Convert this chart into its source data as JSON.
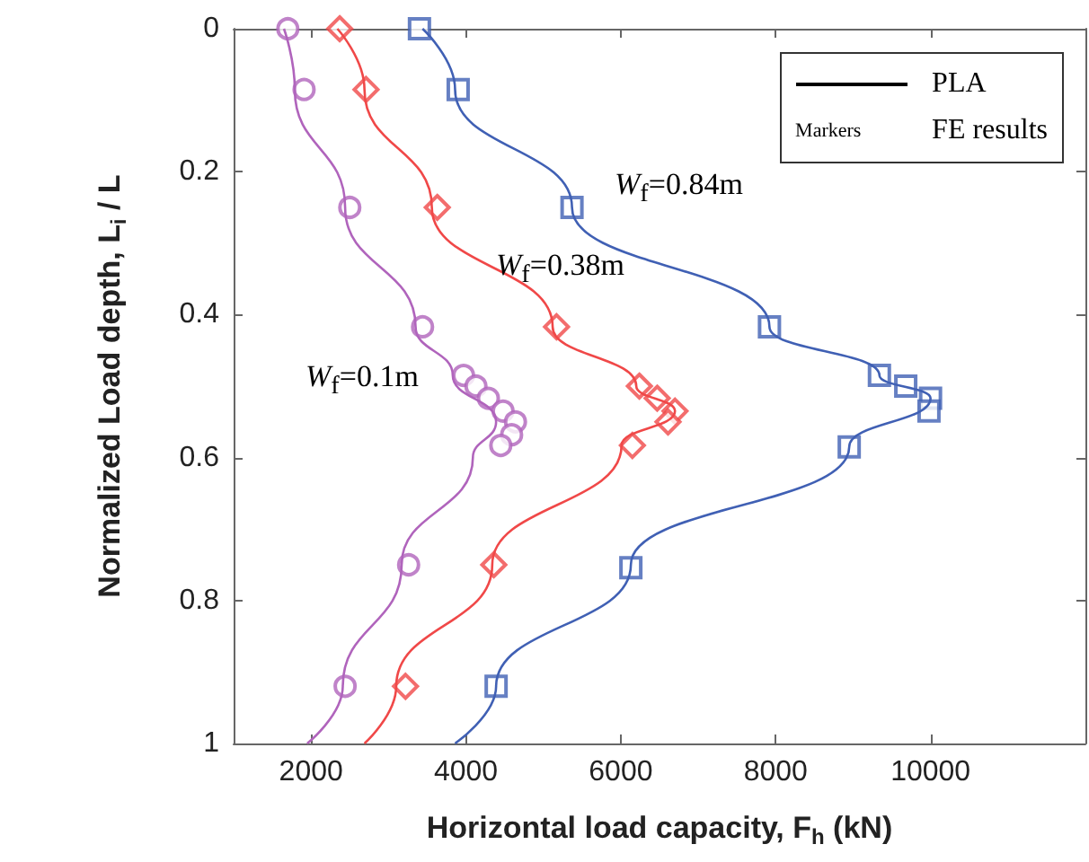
{
  "chart_data": {
    "type": "line",
    "xlabel": "Horizontal load capacity, F$_{h}$ (kN)",
    "ylabel": "Normalized Load depth, L$_{i}$ / L",
    "xlim": [
      1000,
      12000
    ],
    "xticks": [
      2000,
      4000,
      6000,
      8000,
      10000
    ],
    "ylim": [
      1,
      0
    ],
    "yticks": [
      0,
      0.2,
      0.4,
      0.6,
      0.8,
      1
    ],
    "grid": false,
    "series": [
      {
        "marker": "none",
        "color": "#b064bc",
        "x": [
          1650,
          1790,
          2440,
          3350,
          3830,
          4390,
          4090,
          3170,
          2410,
          1950
        ],
        "values": [
          0,
          0.085,
          0.25,
          0.417,
          0.485,
          0.55,
          0.6,
          0.75,
          0.92,
          1
        ]
      },
      {
        "marker": "none",
        "color": "#f04848",
        "x": [
          2340,
          2690,
          3560,
          5120,
          6200,
          6700,
          6010,
          4340,
          3100,
          2690
        ],
        "values": [
          0,
          0.085,
          0.25,
          0.417,
          0.5,
          0.535,
          0.583,
          0.75,
          0.92,
          1
        ]
      },
      {
        "marker": "none",
        "color": "#4060b4",
        "x": [
          3440,
          3860,
          5370,
          7920,
          9340,
          10000,
          8950,
          6130,
          4390,
          3860
        ],
        "values": [
          0,
          0.085,
          0.25,
          0.417,
          0.485,
          0.517,
          0.585,
          0.75,
          0.92,
          1
        ]
      },
      {
        "type": "scatter",
        "marker": "circle",
        "color": "#b064bc",
        "x": [
          1700,
          1910,
          2500,
          3440,
          3970,
          4130,
          4290,
          4480,
          4640,
          4590,
          4450,
          3260,
          2440
        ],
        "values": [
          0,
          0.085,
          0.25,
          0.417,
          0.485,
          0.5,
          0.517,
          0.535,
          0.55,
          0.568,
          0.583,
          0.75,
          0.92
        ]
      },
      {
        "type": "scatter",
        "marker": "diamond",
        "color": "#f04848",
        "x": [
          2370,
          2710,
          3630,
          5170,
          6240,
          6470,
          6700,
          6610,
          6150,
          4360,
          3220
        ],
        "values": [
          0,
          0.085,
          0.25,
          0.417,
          0.5,
          0.517,
          0.535,
          0.55,
          0.583,
          0.75,
          0.92
        ]
      },
      {
        "type": "scatter",
        "marker": "square",
        "color": "#4060b4",
        "x": [
          3400,
          3900,
          5370,
          7920,
          9340,
          9680,
          10000,
          9980,
          8950,
          6130,
          4390
        ],
        "values": [
          0,
          0.085,
          0.25,
          0.417,
          0.485,
          0.5,
          0.517,
          0.535,
          0.585,
          0.754,
          0.92
        ]
      }
    ],
    "annotations": [
      "PLA",
      "Markers",
      "FE results",
      "W$_{f}$=0.84m",
      "W$_{f}$=0.38m",
      "W$_{f}$=0.1m"
    ]
  }
}
